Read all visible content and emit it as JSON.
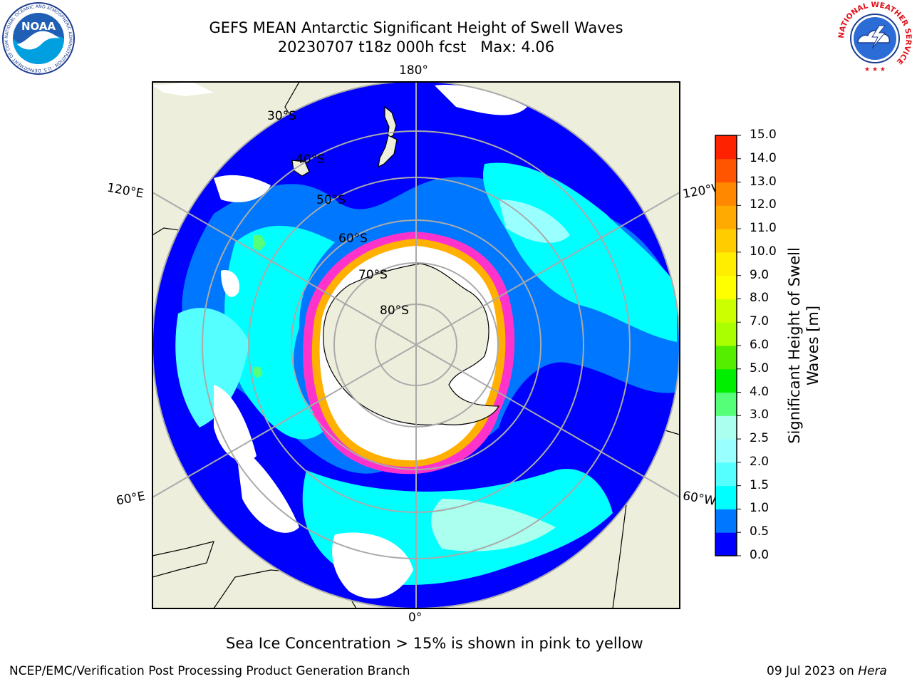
{
  "header": {
    "title_line1": "GEFS MEAN Antarctic Significant Height of Swell Waves",
    "title_line2": "20230707 t18z 000h fcst   Max: 4.06"
  },
  "logos": {
    "left": {
      "name": "noaa-logo",
      "text": "NOAA",
      "ring_text": "NATIONAL OCEANIC AND ATMOSPHERIC ADMINISTRATION · U.S. DEPARTMENT OF COMMERCE"
    },
    "right": {
      "name": "nws-logo",
      "ring_text": "NATIONAL WEATHER SERVICE"
    }
  },
  "map": {
    "projection": "south-polar-stereographic",
    "longitude_labels": {
      "top": "180°",
      "bottom": "0°",
      "upper_left": "120°E",
      "upper_right": "120°W",
      "lower_left": "60°E",
      "lower_right": "60°W"
    },
    "latitude_labels": [
      "30°S",
      "40°S",
      "50°S",
      "60°S",
      "70°S",
      "80°S"
    ],
    "colors": {
      "land": "#eeeedc",
      "ocean_open": "#0000ff",
      "ice_white": "#ffffff",
      "ice_edge": [
        "#ff33cc",
        "#ffb000"
      ]
    }
  },
  "colorbar": {
    "label": "Significant Height of Swell Waves [m]",
    "label_line1": "Significant Height of Swell",
    "label_line2": "Waves [m]",
    "ticks": [
      "0.0",
      "0.5",
      "1.0",
      "1.5",
      "2.0",
      "2.5",
      "3.0",
      "4.0",
      "5.0",
      "6.0",
      "7.0",
      "8.0",
      "9.0",
      "10.0",
      "11.0",
      "12.0",
      "13.0",
      "14.0",
      "15.0"
    ],
    "colors": [
      "#0000ff",
      "#0077ff",
      "#00ffff",
      "#55ffff",
      "#99ffff",
      "#aaffee",
      "#55ff77",
      "#00ee00",
      "#55ee00",
      "#aaff00",
      "#ccff00",
      "#ffff00",
      "#ffee00",
      "#ffcc00",
      "#ffaa00",
      "#ff8800",
      "#ff5500",
      "#ff2200",
      "#ff0000"
    ]
  },
  "note": "Sea Ice Concentration > 15% is shown in pink to yellow",
  "footer": {
    "left": "NCEP/EMC/Verification Post Processing Product Generation Branch",
    "right_date": "09 Jul 2023 on",
    "right_machine": "Hera"
  }
}
